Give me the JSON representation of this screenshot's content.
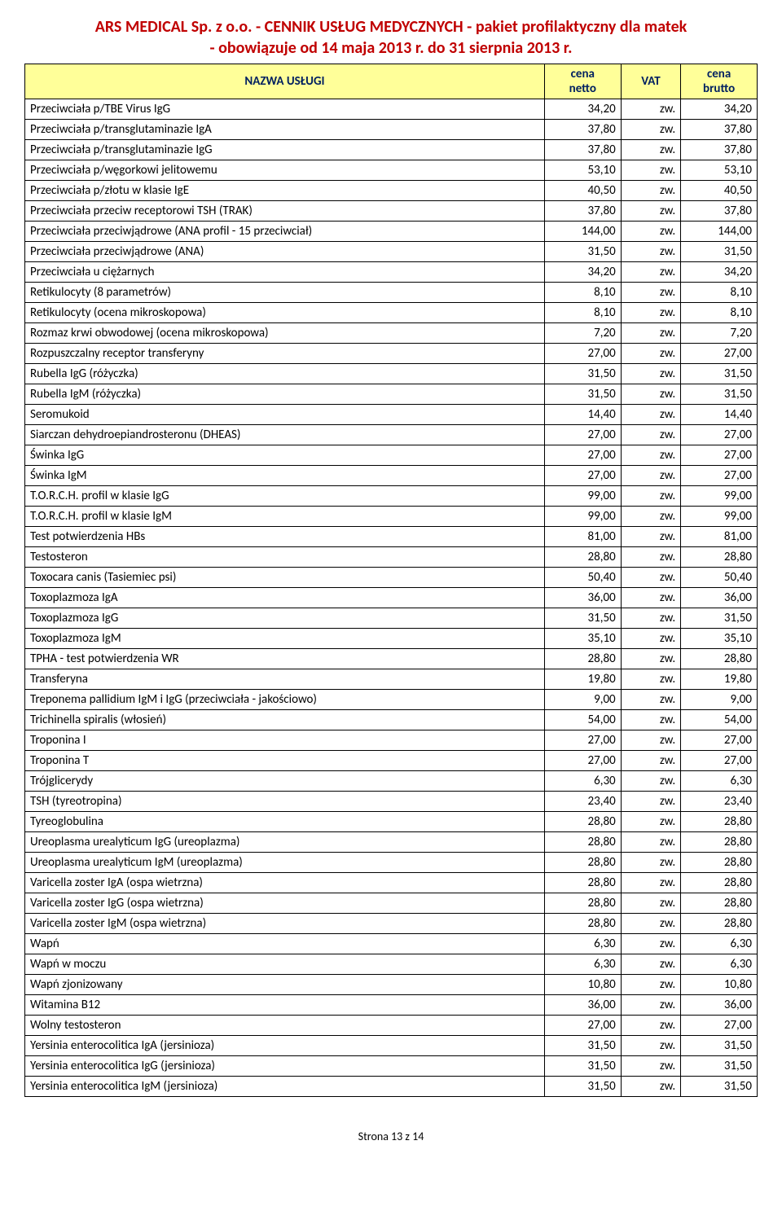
{
  "title_line1": "ARS MEDICAL Sp. z o.o. - CENNIK USŁUG MEDYCZNYCH - pakiet profilaktyczny dla matek",
  "title_line2": "- obowiązuje od 14 maja 2013 r. do 31 sierpnia 2013 r.",
  "headers": {
    "name": "NAZWA USŁUGI",
    "netto_l1": "cena",
    "netto_l2": "netto",
    "vat": "VAT",
    "brutto_l1": "cena",
    "brutto_l2": "brutto"
  },
  "rows": [
    {
      "name": "Przeciwciała p/TBE Virus IgG",
      "netto": "34,20",
      "vat": "zw.",
      "brutto": "34,20"
    },
    {
      "name": "Przeciwciała p/transglutaminazie IgA",
      "netto": "37,80",
      "vat": "zw.",
      "brutto": "37,80"
    },
    {
      "name": "Przeciwciała p/transglutaminazie IgG",
      "netto": "37,80",
      "vat": "zw.",
      "brutto": "37,80"
    },
    {
      "name": "Przeciwciała p/węgorkowi jelitowemu",
      "netto": "53,10",
      "vat": "zw.",
      "brutto": "53,10"
    },
    {
      "name": "Przeciwciała p/złotu w klasie IgE",
      "netto": "40,50",
      "vat": "zw.",
      "brutto": "40,50"
    },
    {
      "name": "Przeciwciała przeciw receptorowi TSH (TRAK)",
      "netto": "37,80",
      "vat": "zw.",
      "brutto": "37,80"
    },
    {
      "name": "Przeciwciała przeciwjądrowe (ANA profil - 15 przeciwciał)",
      "netto": "144,00",
      "vat": "zw.",
      "brutto": "144,00"
    },
    {
      "name": "Przeciwciała przeciwjądrowe (ANA)",
      "netto": "31,50",
      "vat": "zw.",
      "brutto": "31,50"
    },
    {
      "name": "Przeciwciała u ciężarnych",
      "netto": "34,20",
      "vat": "zw.",
      "brutto": "34,20"
    },
    {
      "name": "Retikulocyty (8 parametrów)",
      "netto": "8,10",
      "vat": "zw.",
      "brutto": "8,10"
    },
    {
      "name": "Retikulocyty (ocena mikroskopowa)",
      "netto": "8,10",
      "vat": "zw.",
      "brutto": "8,10"
    },
    {
      "name": "Rozmaz krwi obwodowej (ocena mikroskopowa)",
      "netto": "7,20",
      "vat": "zw.",
      "brutto": "7,20"
    },
    {
      "name": "Rozpuszczalny receptor transferyny",
      "netto": "27,00",
      "vat": "zw.",
      "brutto": "27,00"
    },
    {
      "name": "Rubella IgG (różyczka)",
      "netto": "31,50",
      "vat": "zw.",
      "brutto": "31,50"
    },
    {
      "name": "Rubella IgM (różyczka)",
      "netto": "31,50",
      "vat": "zw.",
      "brutto": "31,50"
    },
    {
      "name": "Seromukoid",
      "netto": "14,40",
      "vat": "zw.",
      "brutto": "14,40"
    },
    {
      "name": "Siarczan dehydroepiandrosteronu (DHEAS)",
      "netto": "27,00",
      "vat": "zw.",
      "brutto": "27,00"
    },
    {
      "name": "Świnka IgG",
      "netto": "27,00",
      "vat": "zw.",
      "brutto": "27,00"
    },
    {
      "name": "Świnka IgM",
      "netto": "27,00",
      "vat": "zw.",
      "brutto": "27,00"
    },
    {
      "name": "T.O.R.C.H. profil w klasie IgG",
      "netto": "99,00",
      "vat": "zw.",
      "brutto": "99,00"
    },
    {
      "name": "T.O.R.C.H. profil w klasie IgM",
      "netto": "99,00",
      "vat": "zw.",
      "brutto": "99,00"
    },
    {
      "name": "Test potwierdzenia HBs",
      "netto": "81,00",
      "vat": "zw.",
      "brutto": "81,00"
    },
    {
      "name": "Testosteron",
      "netto": "28,80",
      "vat": "zw.",
      "brutto": "28,80"
    },
    {
      "name": "Toxocara canis (Tasiemiec psi)",
      "netto": "50,40",
      "vat": "zw.",
      "brutto": "50,40"
    },
    {
      "name": "Toxoplazmoza IgA",
      "netto": "36,00",
      "vat": "zw.",
      "brutto": "36,00"
    },
    {
      "name": "Toxoplazmoza IgG",
      "netto": "31,50",
      "vat": "zw.",
      "brutto": "31,50"
    },
    {
      "name": "Toxoplazmoza IgM",
      "netto": "35,10",
      "vat": "zw.",
      "brutto": "35,10"
    },
    {
      "name": "TPHA - test potwierdzenia WR",
      "netto": "28,80",
      "vat": "zw.",
      "brutto": "28,80"
    },
    {
      "name": "Transferyna",
      "netto": "19,80",
      "vat": "zw.",
      "brutto": "19,80"
    },
    {
      "name": "Treponema pallidium IgM i IgG (przeciwciała - jakościowo)",
      "netto": "9,00",
      "vat": "zw.",
      "brutto": "9,00"
    },
    {
      "name": "Trichinella spiralis (włosień)",
      "netto": "54,00",
      "vat": "zw.",
      "brutto": "54,00"
    },
    {
      "name": "Troponina I",
      "netto": "27,00",
      "vat": "zw.",
      "brutto": "27,00"
    },
    {
      "name": "Troponina T",
      "netto": "27,00",
      "vat": "zw.",
      "brutto": "27,00"
    },
    {
      "name": "Trójglicerydy",
      "netto": "6,30",
      "vat": "zw.",
      "brutto": "6,30"
    },
    {
      "name": "TSH (tyreotropina)",
      "netto": "23,40",
      "vat": "zw.",
      "brutto": "23,40"
    },
    {
      "name": "Tyreoglobulina",
      "netto": "28,80",
      "vat": "zw.",
      "brutto": "28,80"
    },
    {
      "name": "Ureoplasma urealyticum IgG (ureoplazma)",
      "netto": "28,80",
      "vat": "zw.",
      "brutto": "28,80"
    },
    {
      "name": "Ureoplasma urealyticum IgM (ureoplazma)",
      "netto": "28,80",
      "vat": "zw.",
      "brutto": "28,80"
    },
    {
      "name": "Varicella zoster IgA (ospa wietrzna)",
      "netto": "28,80",
      "vat": "zw.",
      "brutto": "28,80"
    },
    {
      "name": "Varicella zoster IgG (ospa wietrzna)",
      "netto": "28,80",
      "vat": "zw.",
      "brutto": "28,80"
    },
    {
      "name": "Varicella zoster IgM (ospa wietrzna)",
      "netto": "28,80",
      "vat": "zw.",
      "brutto": "28,80"
    },
    {
      "name": "Wapń",
      "netto": "6,30",
      "vat": "zw.",
      "brutto": "6,30"
    },
    {
      "name": "Wapń w moczu",
      "netto": "6,30",
      "vat": "zw.",
      "brutto": "6,30"
    },
    {
      "name": "Wapń zjonizowany",
      "netto": "10,80",
      "vat": "zw.",
      "brutto": "10,80"
    },
    {
      "name": "Witamina B12",
      "netto": "36,00",
      "vat": "zw.",
      "brutto": "36,00"
    },
    {
      "name": "Wolny testosteron",
      "netto": "27,00",
      "vat": "zw.",
      "brutto": "27,00"
    },
    {
      "name": "Yersinia enterocolitica IgA (jersinioza)",
      "netto": "31,50",
      "vat": "zw.",
      "brutto": "31,50"
    },
    {
      "name": "Yersinia enterocolitica IgG (jersinioza)",
      "netto": "31,50",
      "vat": "zw.",
      "brutto": "31,50"
    },
    {
      "name": "Yersinia enterocolitica IgM (jersinioza)",
      "netto": "31,50",
      "vat": "zw.",
      "brutto": "31,50"
    }
  ],
  "footer": "Strona 13 z 14"
}
